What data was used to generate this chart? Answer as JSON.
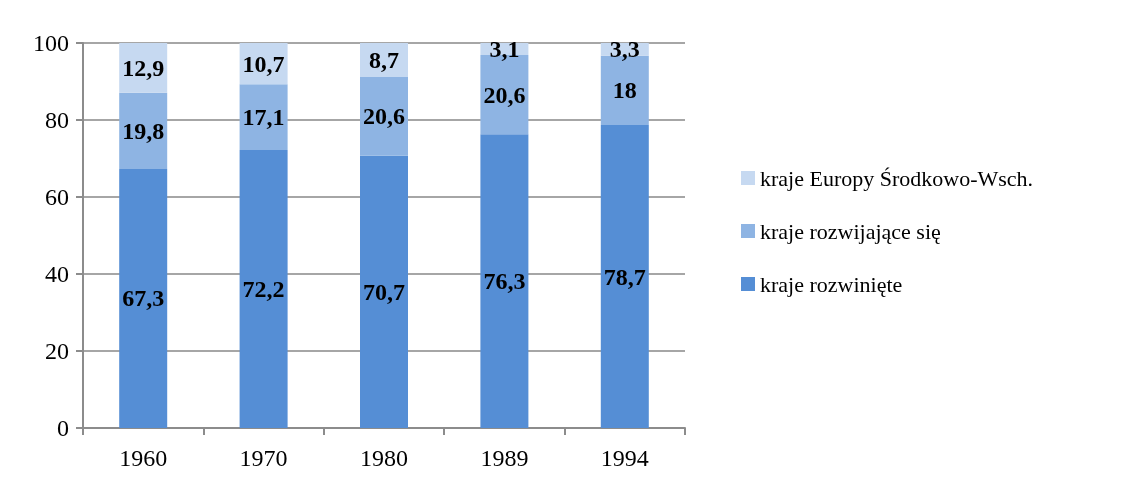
{
  "chart_data": {
    "type": "bar",
    "stacked": true,
    "categories": [
      "1960",
      "1970",
      "1980",
      "1989",
      "1994"
    ],
    "series": [
      {
        "name": "kraje rozwinięte",
        "color": "#558ed5",
        "values": [
          67.3,
          72.2,
          70.7,
          76.3,
          78.7
        ],
        "value_labels": [
          "67,3",
          "72,2",
          "70,7",
          "76,3",
          "78,7"
        ]
      },
      {
        "name": "kraje rozwijające się",
        "color": "#8eb4e3",
        "values": [
          19.8,
          17.1,
          20.6,
          20.6,
          18
        ],
        "value_labels": [
          "19,8",
          "17,1",
          "20,6",
          "20,6",
          "18"
        ]
      },
      {
        "name": "kraje Europy Środkowo-Wsch.",
        "color": "#c6d9f1",
        "values": [
          12.9,
          10.7,
          8.7,
          3.1,
          3.3
        ],
        "value_labels": [
          "12,9",
          "10,7",
          "8,7",
          "3,1",
          "3,3"
        ]
      }
    ],
    "ylim": [
      0,
      100
    ],
    "yticks": [
      0,
      20,
      40,
      60,
      80,
      100
    ],
    "grid": "y",
    "legend": "right"
  }
}
